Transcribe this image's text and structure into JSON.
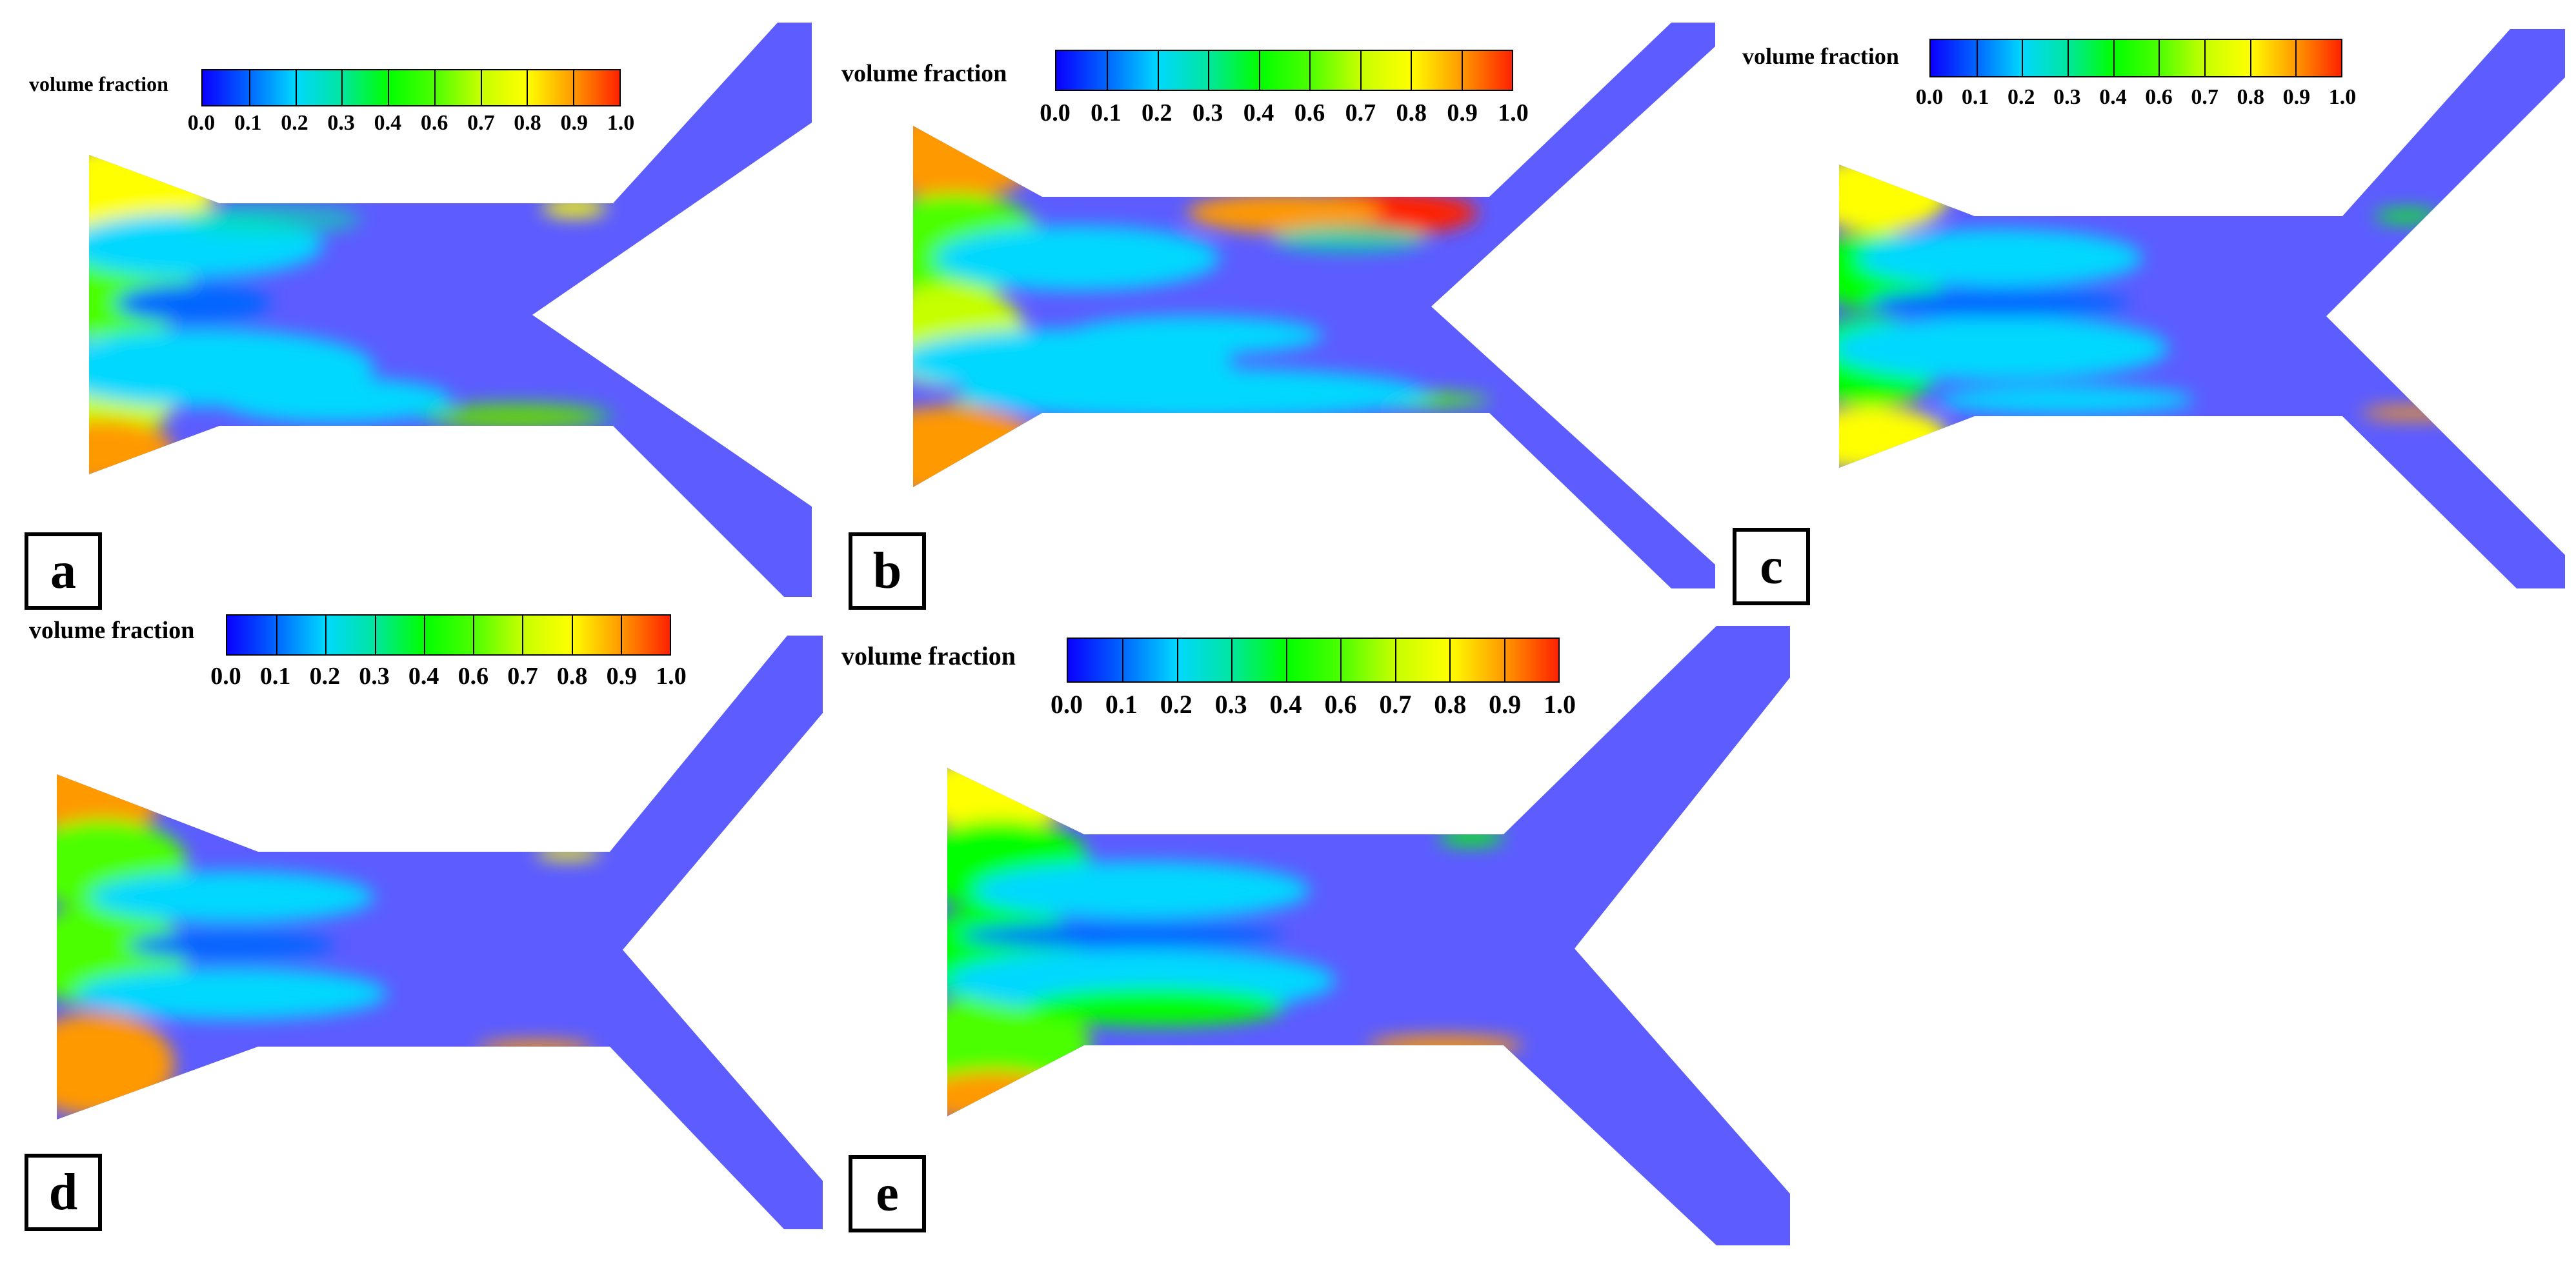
{
  "colorbar": {
    "title": "volume fraction",
    "ticks": [
      "0.0",
      "0.1",
      "0.2",
      "0.3",
      "0.4",
      "0.6",
      "0.7",
      "0.8",
      "0.9",
      "1.0"
    ],
    "colors": [
      "#0a00ff",
      "#0066ff",
      "#00d8ff",
      "#00e6a0",
      "#00ff00",
      "#4cff00",
      "#c6ff00",
      "#ffff00",
      "#ff9900",
      "#ff2200"
    ]
  },
  "geometry_color": "#5c5cff",
  "panels": [
    {
      "label": "a"
    },
    {
      "label": "b"
    },
    {
      "label": "c"
    },
    {
      "label": "d"
    },
    {
      "label": "e"
    }
  ]
}
